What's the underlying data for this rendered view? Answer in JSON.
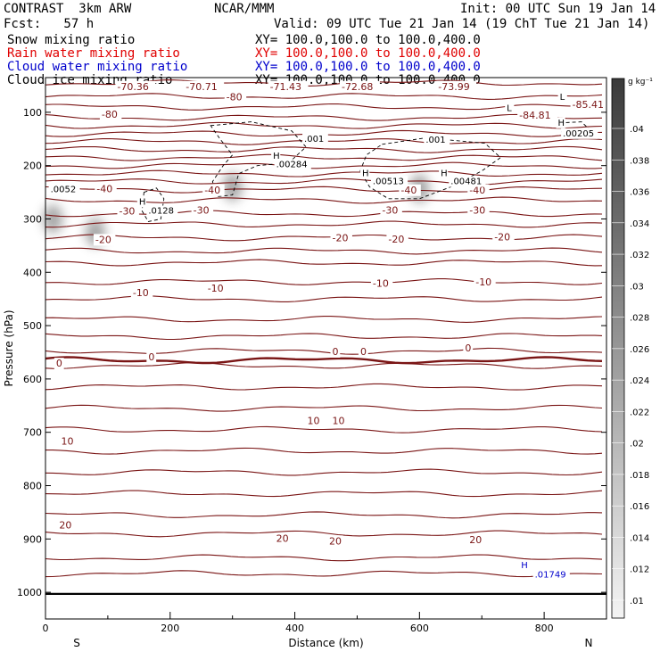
{
  "header": {
    "model": "CONTRAST  3km ARW",
    "org": "NCAR/MMM",
    "init": "Init: 00 UTC Sun 19 Jan 14",
    "fcst": "Fcst:   57 h",
    "valid": "Valid: 09 UTC Tue 21 Jan 14 (19 ChT Tue 21 Jan 14)"
  },
  "fields": [
    {
      "name": "Snow mixing ratio",
      "xy": "XY= 100.0,100.0 to 100.0,400.0",
      "color": "#000000"
    },
    {
      "name": "Rain water mixing ratio",
      "xy": "XY= 100.0,100.0 to 100.0,400.0",
      "color": "#e00000"
    },
    {
      "name": "Cloud water mixing ratio",
      "xy": "XY= 100.0,100.0 to 100.0,400.0",
      "color": "#0000cc"
    },
    {
      "name": "Cloud ice mixing ratio",
      "xy": "XY= 100.0,100.0 to 100.0,400.0",
      "color": "#000000"
    }
  ],
  "chart_data": {
    "type": "contour",
    "xlabel": "Distance (km)",
    "ylabel": "Pressure (hPa)",
    "xlim": [
      0,
      900
    ],
    "ylim": [
      1050,
      35
    ],
    "x_ticks": [
      0,
      200,
      400,
      600,
      800
    ],
    "y_ticks": [
      100,
      200,
      300,
      400,
      500,
      600,
      700,
      800,
      900,
      1000
    ],
    "x_end_labels": {
      "left": "S",
      "right": "N"
    },
    "temp_color": "#7a1515",
    "temp_levels_hpa": [
      45,
      70,
      90,
      110,
      125,
      140,
      155,
      170,
      185,
      200,
      215,
      230,
      245,
      265,
      290,
      310,
      335,
      360,
      382,
      418,
      450,
      488,
      520,
      548,
      575,
      615,
      655,
      695,
      735,
      775,
      815,
      855,
      890,
      935,
      965
    ],
    "bold_contour_hpa": 565,
    "ground_hpa": 1003,
    "temp_labels": [
      {
        "t": "-70.36",
        "x": 115,
        "p": 58
      },
      {
        "t": "-70.71",
        "x": 225,
        "p": 58
      },
      {
        "t": "-80",
        "x": 290,
        "p": 78
      },
      {
        "t": "-71.43",
        "x": 360,
        "p": 58
      },
      {
        "t": "-72.68",
        "x": 475,
        "p": 58
      },
      {
        "t": "-73.99",
        "x": 630,
        "p": 58
      },
      {
        "t": "-80",
        "x": 90,
        "p": 110
      },
      {
        "t": "-84.81",
        "x": 760,
        "p": 112
      },
      {
        "t": "-85.41",
        "x": 845,
        "p": 92
      },
      {
        "t": "-40",
        "x": 82,
        "p": 250
      },
      {
        "t": "-40",
        "x": 255,
        "p": 252
      },
      {
        "t": "-40",
        "x": 570,
        "p": 252
      },
      {
        "t": "-40",
        "x": 680,
        "p": 252
      },
      {
        "t": "-30",
        "x": 118,
        "p": 292
      },
      {
        "t": "-30",
        "x": 237,
        "p": 290
      },
      {
        "t": "-30",
        "x": 540,
        "p": 290
      },
      {
        "t": "-30",
        "x": 680,
        "p": 290
      },
      {
        "t": "-20",
        "x": 80,
        "p": 345
      },
      {
        "t": "-20",
        "x": 460,
        "p": 342
      },
      {
        "t": "-20",
        "x": 550,
        "p": 344
      },
      {
        "t": "-20",
        "x": 720,
        "p": 340
      },
      {
        "t": "-10",
        "x": 140,
        "p": 445
      },
      {
        "t": "-10",
        "x": 260,
        "p": 436
      },
      {
        "t": "-10",
        "x": 525,
        "p": 427
      },
      {
        "t": "-10",
        "x": 690,
        "p": 425
      },
      {
        "t": "0",
        "x": 17,
        "p": 577
      },
      {
        "t": "0",
        "x": 165,
        "p": 565
      },
      {
        "t": "0",
        "x": 460,
        "p": 555
      },
      {
        "t": "0",
        "x": 505,
        "p": 555
      },
      {
        "t": "0",
        "x": 673,
        "p": 548
      },
      {
        "t": "10",
        "x": 25,
        "p": 723
      },
      {
        "t": "10",
        "x": 420,
        "p": 685
      },
      {
        "t": "10",
        "x": 460,
        "p": 685
      },
      {
        "t": "20",
        "x": 22,
        "p": 880
      },
      {
        "t": "20",
        "x": 370,
        "p": 905
      },
      {
        "t": "20",
        "x": 455,
        "p": 910
      },
      {
        "t": "20",
        "x": 680,
        "p": 908
      }
    ],
    "ice_labels": [
      {
        "t": ".001",
        "x": 415,
        "p": 155
      },
      {
        "t": ".001",
        "x": 610,
        "p": 157
      },
      {
        "t": "H",
        "x": 365,
        "p": 187
      },
      {
        "t": ".00284",
        "x": 370,
        "p": 203
      },
      {
        "t": "H",
        "x": 508,
        "p": 220
      },
      {
        "t": ".00513",
        "x": 525,
        "p": 235
      },
      {
        "t": "H",
        "x": 634,
        "p": 220
      },
      {
        "t": ".00481",
        "x": 650,
        "p": 235
      },
      {
        "t": "H",
        "x": 150,
        "p": 273
      },
      {
        "t": ".0128",
        "x": 165,
        "p": 290
      },
      {
        "t": ".0052",
        "x": 8,
        "p": 250
      },
      {
        "t": "H",
        "x": 822,
        "p": 125
      },
      {
        "t": ".00205",
        "x": 830,
        "p": 145
      },
      {
        "t": "L",
        "x": 825,
        "p": 77
      },
      {
        "t": "L",
        "x": 740,
        "p": 98
      }
    ],
    "cloud_water_labels": [
      {
        "t": "H",
        "x": 763,
        "p": 955
      },
      {
        "t": ".01749",
        "x": 785,
        "p": 972
      }
    ],
    "snow_maxima": [
      {
        "x": 12,
        "p": 300
      },
      {
        "x": 80,
        "p": 325
      },
      {
        "x": 300,
        "p": 240
      },
      {
        "x": 600,
        "p": 243
      }
    ],
    "colorbar": {
      "unit": "g kg⁻¹",
      "ticks": [
        ".04",
        ".038",
        ".036",
        ".034",
        ".032",
        ".03",
        ".028",
        ".026",
        ".024",
        ".022",
        ".02",
        ".018",
        ".016",
        ".014",
        ".012",
        ".01"
      ]
    }
  }
}
